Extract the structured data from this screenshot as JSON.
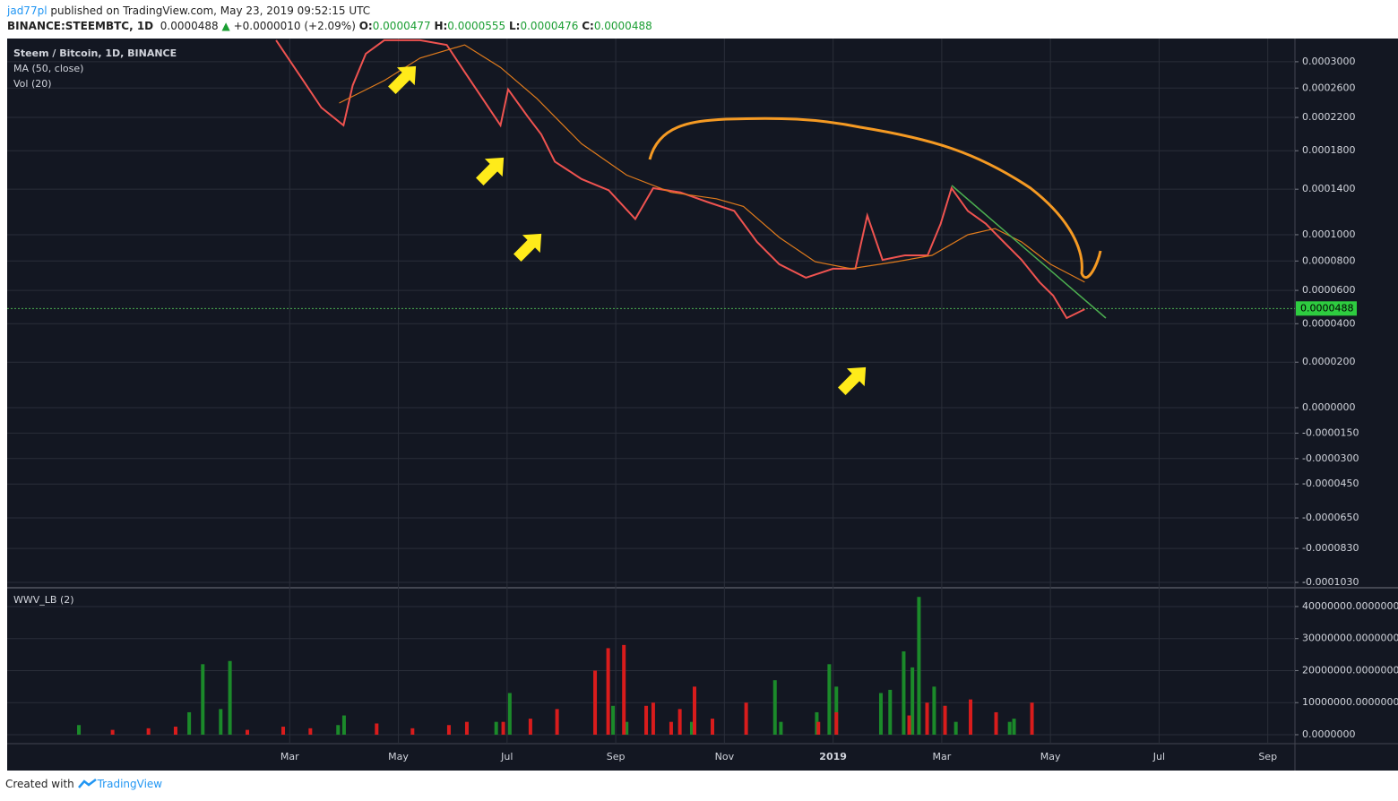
{
  "header": {
    "author": "jad77pl",
    "published": "published on TradingView.com, May 23, 2019 09:52:15 UTC",
    "symbol": "BINANCE:STEEMBTC, 1D",
    "price": "0.0000488",
    "arrow": "▲",
    "change": "+0.0000010 (+2.09%)",
    "o_label": "O:",
    "open": "0.0000477",
    "h_label": "H:",
    "high": "0.0000555",
    "l_label": "L:",
    "low": "0.0000476",
    "c_label": "C:",
    "close": "0.0000488"
  },
  "footer": {
    "created": "Created with",
    "brand": "TradingView"
  },
  "chart_data": [
    {
      "type": "line",
      "title": "Steem / Bitcoin, 1D, BINANCE",
      "indicators": [
        "MA (50, close)",
        "Vol (20)"
      ],
      "xlim": [
        -2.2,
        21.5
      ],
      "xticks": [
        {
          "value": 3,
          "label": "Mar"
        },
        {
          "value": 5,
          "label": "May"
        },
        {
          "value": 7,
          "label": "Jul"
        },
        {
          "value": 9,
          "label": "Sep"
        },
        {
          "value": 11,
          "label": "Nov"
        },
        {
          "value": 13,
          "label": "2019"
        },
        {
          "value": 15,
          "label": "Mar"
        },
        {
          "value": 17,
          "label": "May"
        },
        {
          "value": 19,
          "label": "Jul"
        },
        {
          "value": 21,
          "label": "Sep"
        }
      ],
      "ylim": [
        -0.000103,
        0.000339
      ],
      "yticks": [
        {
          "value": 0.0003,
          "label": "0.0003000"
        },
        {
          "value": 0.00026,
          "label": "0.0002600"
        },
        {
          "value": 0.00022,
          "label": "0.0002200"
        },
        {
          "value": 0.00018,
          "label": "0.0001800"
        },
        {
          "value": 0.00014,
          "label": "0.0001400"
        },
        {
          "value": 0.0001,
          "label": "0.0001000"
        },
        {
          "value": 8e-05,
          "label": "0.0000800"
        },
        {
          "value": 6e-05,
          "label": "0.0000600"
        },
        {
          "value": 4e-05,
          "label": "0.0000400"
        },
        {
          "value": 2e-05,
          "label": "0.0000200"
        },
        {
          "value": 0,
          "label": "0.0000000"
        },
        {
          "value": -1.5e-05,
          "label": "-0.0000150"
        },
        {
          "value": -3e-05,
          "label": "-0.0000300"
        },
        {
          "value": -4.5e-05,
          "label": "-0.0000450"
        },
        {
          "value": -6.5e-05,
          "label": "-0.0000650"
        },
        {
          "value": -8.3e-05,
          "label": "-0.0000830"
        },
        {
          "value": -0.000103,
          "label": "-0.0001030"
        }
      ],
      "scale": "log",
      "grid": true,
      "last_price": 4.88e-05,
      "series": [
        {
          "name": "STEEMBTC",
          "color": "#ef5350",
          "x": [
            2.75,
            3.25,
            3.58,
            3.99,
            4.16,
            4.4,
            4.74,
            5.4,
            5.89,
            6.22,
            6.55,
            6.88,
            7.02,
            7.38,
            7.63,
            7.88,
            8.37,
            8.87,
            9.36,
            9.69,
            10.19,
            10.69,
            11.18,
            11.6,
            12.01,
            12.5,
            13.0,
            13.41,
            13.63,
            13.91,
            14.32,
            14.74,
            14.98,
            15.18,
            15.48,
            15.81,
            16.14,
            16.47,
            16.8,
            17.05,
            17.3,
            17.63
          ],
          "values": [
            0.000336,
            0.000271,
            0.000233,
            0.00021,
            0.000264,
            0.000313,
            0.000336,
            0.000336,
            0.000328,
            0.000284,
            0.000245,
            0.00021,
            0.000258,
            0.000221,
            0.000199,
            0.000168,
            0.00015,
            0.000139,
            0.000113,
            0.000141,
            0.000137,
            0.000128,
            0.00012,
            9.43e-05,
            7.77e-05,
            6.84e-05,
            7.45e-05,
            7.45e-05,
            0.000116,
            8.08e-05,
            8.41e-05,
            8.41e-05,
            0.000109,
            0.000141,
            0.00012,
            0.000109,
            9.43e-05,
            8.08e-05,
            6.54e-05,
            5.67e-05,
            4.32e-05,
            4.84e-05
          ]
        },
        {
          "name": "MA (50, close)",
          "color": "#e07b1c",
          "x": [
            3.91,
            4.74,
            5.4,
            6.22,
            6.88,
            7.55,
            8.37,
            9.2,
            10.02,
            10.85,
            11.35,
            12.01,
            12.67,
            13.33,
            14.16,
            14.82,
            15.48,
            15.98,
            16.47,
            17.0,
            17.63
          ],
          "values": [
            0.000239,
            0.000271,
            0.000306,
            0.000328,
            0.000291,
            0.000245,
            0.000188,
            0.000154,
            0.000137,
            0.000131,
            0.000124,
            9.78e-05,
            7.95e-05,
            7.45e-05,
            7.95e-05,
            8.41e-05,
            0.0001,
            0.000105,
            9.43e-05,
            7.77e-05,
            6.54e-05
          ]
        }
      ]
    },
    {
      "type": "bar",
      "title": "WWV_LB (2)",
      "xlim": [
        -2.2,
        21.5
      ],
      "ylim": [
        -2800000,
        45300000
      ],
      "yticks": [
        {
          "value": 0,
          "label": "0.0000000"
        },
        {
          "value": 10000000,
          "label": "10000000.0000000"
        },
        {
          "value": 20000000,
          "label": "20000000.0000000"
        },
        {
          "value": 30000000,
          "label": "30000000.0000000"
        },
        {
          "value": 40000000,
          "label": "40000000.0000000"
        }
      ],
      "series": [
        {
          "name": "up",
          "color": "#1b8a2a",
          "x": [
            -0.88,
            1.15,
            1.4,
            1.73,
            1.9,
            3.89,
            4.0,
            6.8,
            7.05,
            8.95,
            9.2,
            10.4,
            11.93,
            12.04,
            12.7,
            12.93,
            13.06,
            13.88,
            14.05,
            14.3,
            14.46,
            14.58,
            14.86,
            15.06,
            15.26,
            16.25,
            16.33
          ],
          "values": [
            3000000,
            7000000,
            22000000,
            8000000,
            23000000,
            3000000,
            6000000,
            4000000,
            13000000,
            9000000,
            4000000,
            4000000,
            17000000,
            4000000,
            7000000,
            22000000,
            15000000,
            13000000,
            14000000,
            26000000,
            21000000,
            43000000,
            15000000,
            9000000,
            4000000,
            4000000,
            5000000
          ]
        },
        {
          "name": "down",
          "color": "#d91c1c",
          "x": [
            -0.26,
            0.4,
            0.9,
            2.22,
            2.88,
            3.38,
            4.6,
            5.26,
            5.93,
            6.26,
            6.93,
            7.43,
            7.92,
            8.62,
            8.86,
            9.15,
            9.56,
            9.69,
            10.02,
            10.18,
            10.45,
            10.78,
            11.4,
            12.73,
            13.06,
            14.4,
            14.73,
            15.06,
            15.53,
            16.0,
            16.66
          ],
          "values": [
            1500000,
            2000000,
            2500000,
            1500000,
            2500000,
            2000000,
            3500000,
            2000000,
            3000000,
            4000000,
            4000000,
            5000000,
            8000000,
            20000000,
            27000000,
            28000000,
            9000000,
            10000000,
            4000000,
            8000000,
            15000000,
            5000000,
            10000000,
            4000000,
            7000000,
            6000000,
            10000000,
            9000000,
            11000000,
            7000000,
            10000000
          ]
        }
      ]
    }
  ]
}
